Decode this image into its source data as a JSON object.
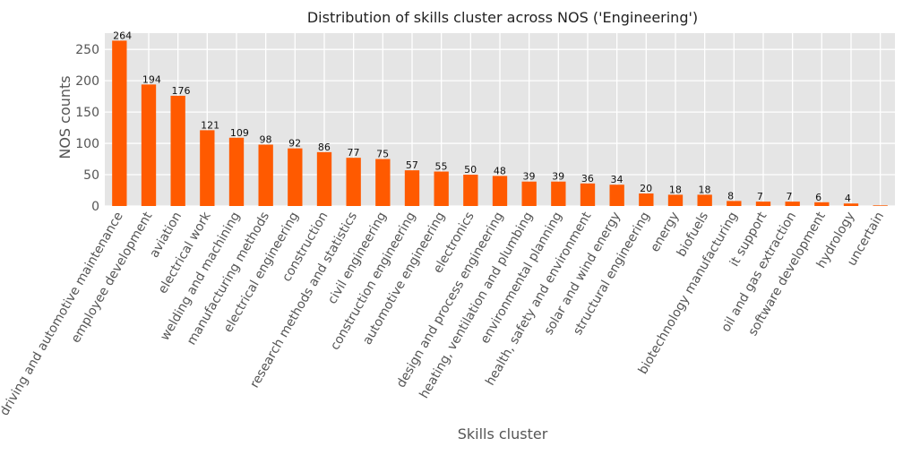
{
  "chart_data": {
    "type": "bar",
    "title": "Distribution of skills cluster across NOS ('Engineering')",
    "xlabel": "Skills cluster",
    "ylabel": "NOS counts",
    "ylim": [
      0,
      276
    ],
    "yticks": [
      0,
      50,
      100,
      150,
      200,
      250
    ],
    "grid": true,
    "legend": "none",
    "colors": {
      "bar": "#ff5a00",
      "plot_bg": "#e5e5e5",
      "grid": "#ffffff",
      "text": "#555555"
    },
    "categories": [
      "driving and automotive maintenance",
      "employee development",
      "aviation",
      "electrical work",
      "welding and machining",
      "manufacturing methods",
      "electrical engineering",
      "construction",
      "research methods and statistics",
      "civil engineering",
      "construction engineering",
      "automotive engineering",
      "electronics",
      "design and process engineering",
      "heating, ventilation and plumbing",
      "environmental planning",
      "health, safety and environment",
      "solar and wind energy",
      "structural engineering",
      "energy",
      "biofuels",
      "biotechnology manufacturing",
      "it support",
      "oil and gas extraction",
      "software development",
      "hydrology",
      "uncertain"
    ],
    "values": [
      264,
      194,
      176,
      121,
      109,
      98,
      92,
      86,
      77,
      75,
      57,
      55,
      50,
      48,
      39,
      39,
      36,
      34,
      20,
      18,
      18,
      8,
      7,
      7,
      6,
      4,
      1
    ],
    "data_labels": [
      "264",
      "194",
      "176",
      "121",
      "109",
      "98",
      "92",
      "86",
      "77",
      "75",
      "57",
      "55",
      "50",
      "48",
      "39",
      "39",
      "36",
      "34",
      "20",
      "18",
      "18",
      "8",
      "7",
      "7",
      "6",
      "4",
      ""
    ]
  }
}
